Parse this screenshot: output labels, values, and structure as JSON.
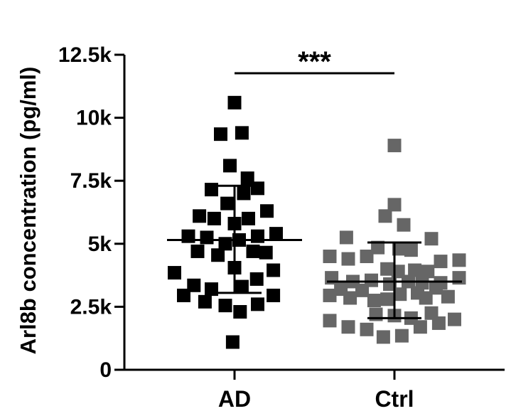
{
  "chart_data": {
    "type": "scatter",
    "title": "",
    "xlabel": "",
    "ylabel": "Arl8b concentration (pg/ml)",
    "ylim": [
      0,
      12500
    ],
    "yticks": [
      0,
      2500,
      5000,
      7500,
      10000,
      12500
    ],
    "ytick_labels": [
      "0",
      "2.5k",
      "5k",
      "7.5k",
      "10k",
      "12.5k"
    ],
    "categories": [
      "AD",
      "Ctrl"
    ],
    "grid": false,
    "legend": "none",
    "significance": {
      "label": "***",
      "between": [
        "AD",
        "Ctrl"
      ]
    },
    "series": [
      {
        "category": "AD",
        "color": "#000000",
        "summary": {
          "mean": 5150,
          "sd_lower": 3050,
          "sd_upper": 7300
        },
        "points": [
          {
            "x": 0.0,
            "y": 10600
          },
          {
            "x": -0.15,
            "y": 9350
          },
          {
            "x": 0.08,
            "y": 9400
          },
          {
            "x": -0.05,
            "y": 8100
          },
          {
            "x": 0.14,
            "y": 7600
          },
          {
            "x": -0.25,
            "y": 7150
          },
          {
            "x": 0.1,
            "y": 7000
          },
          {
            "x": 0.25,
            "y": 7200
          },
          {
            "x": -0.08,
            "y": 6600
          },
          {
            "x": -0.38,
            "y": 6100
          },
          {
            "x": -0.22,
            "y": 6000
          },
          {
            "x": 0.0,
            "y": 5800
          },
          {
            "x": 0.15,
            "y": 6000
          },
          {
            "x": 0.35,
            "y": 6300
          },
          {
            "x": -0.5,
            "y": 5300
          },
          {
            "x": -0.3,
            "y": 5250
          },
          {
            "x": -0.1,
            "y": 5000
          },
          {
            "x": 0.05,
            "y": 5150
          },
          {
            "x": 0.25,
            "y": 5300
          },
          {
            "x": 0.45,
            "y": 5400
          },
          {
            "x": -0.4,
            "y": 4700
          },
          {
            "x": -0.18,
            "y": 4550
          },
          {
            "x": 0.2,
            "y": 4700
          },
          {
            "x": 0.34,
            "y": 4650
          },
          {
            "x": 0.0,
            "y": 4050
          },
          {
            "x": -0.65,
            "y": 3850
          },
          {
            "x": 0.42,
            "y": 3950
          },
          {
            "x": 0.24,
            "y": 3600
          },
          {
            "x": -0.44,
            "y": 3350
          },
          {
            "x": -0.25,
            "y": 3200
          },
          {
            "x": 0.08,
            "y": 3300
          },
          {
            "x": -0.55,
            "y": 2950
          },
          {
            "x": 0.42,
            "y": 2950
          },
          {
            "x": -0.32,
            "y": 2700
          },
          {
            "x": -0.1,
            "y": 2550
          },
          {
            "x": 0.25,
            "y": 2600
          },
          {
            "x": 0.06,
            "y": 2300
          },
          {
            "x": -0.02,
            "y": 1100
          }
        ]
      },
      {
        "category": "Ctrl",
        "color": "#666666",
        "summary": {
          "mean": 3500,
          "sd_lower": 2050,
          "sd_upper": 5050
        },
        "points": [
          {
            "x": 0.0,
            "y": 8900
          },
          {
            "x": 0.0,
            "y": 6550
          },
          {
            "x": -0.1,
            "y": 6100
          },
          {
            "x": 0.1,
            "y": 5750
          },
          {
            "x": -0.52,
            "y": 5250
          },
          {
            "x": 0.4,
            "y": 5200
          },
          {
            "x": -0.18,
            "y": 4850
          },
          {
            "x": 0.05,
            "y": 4800
          },
          {
            "x": 0.18,
            "y": 4750
          },
          {
            "x": -0.7,
            "y": 4500
          },
          {
            "x": -0.5,
            "y": 4400
          },
          {
            "x": -0.3,
            "y": 4500
          },
          {
            "x": 0.5,
            "y": 4300
          },
          {
            "x": 0.7,
            "y": 4350
          },
          {
            "x": -0.08,
            "y": 4000
          },
          {
            "x": 0.04,
            "y": 3900
          },
          {
            "x": 0.22,
            "y": 3950
          },
          {
            "x": 0.36,
            "y": 3900
          },
          {
            "x": -0.68,
            "y": 3650
          },
          {
            "x": -0.45,
            "y": 3500
          },
          {
            "x": -0.25,
            "y": 3550
          },
          {
            "x": -0.05,
            "y": 3400
          },
          {
            "x": 0.15,
            "y": 3500
          },
          {
            "x": 0.3,
            "y": 3450
          },
          {
            "x": 0.5,
            "y": 3450
          },
          {
            "x": 0.7,
            "y": 3650
          },
          {
            "x": -0.58,
            "y": 3200
          },
          {
            "x": -0.35,
            "y": 3150
          },
          {
            "x": 0.06,
            "y": 3000
          },
          {
            "x": 0.25,
            "y": 3050
          },
          {
            "x": 0.45,
            "y": 3250
          },
          {
            "x": -0.7,
            "y": 2950
          },
          {
            "x": -0.48,
            "y": 2850
          },
          {
            "x": -0.22,
            "y": 2750
          },
          {
            "x": -0.08,
            "y": 2800
          },
          {
            "x": 0.34,
            "y": 2850
          },
          {
            "x": 0.58,
            "y": 2900
          },
          {
            "x": -0.2,
            "y": 2200
          },
          {
            "x": 0.0,
            "y": 2150
          },
          {
            "x": 0.18,
            "y": 2050
          },
          {
            "x": 0.4,
            "y": 2250
          },
          {
            "x": -0.7,
            "y": 1950
          },
          {
            "x": -0.5,
            "y": 1700
          },
          {
            "x": -0.3,
            "y": 1600
          },
          {
            "x": 0.28,
            "y": 1700
          },
          {
            "x": 0.48,
            "y": 1850
          },
          {
            "x": 0.65,
            "y": 2000
          },
          {
            "x": -0.12,
            "y": 1300
          },
          {
            "x": 0.08,
            "y": 1350
          }
        ]
      }
    ]
  }
}
